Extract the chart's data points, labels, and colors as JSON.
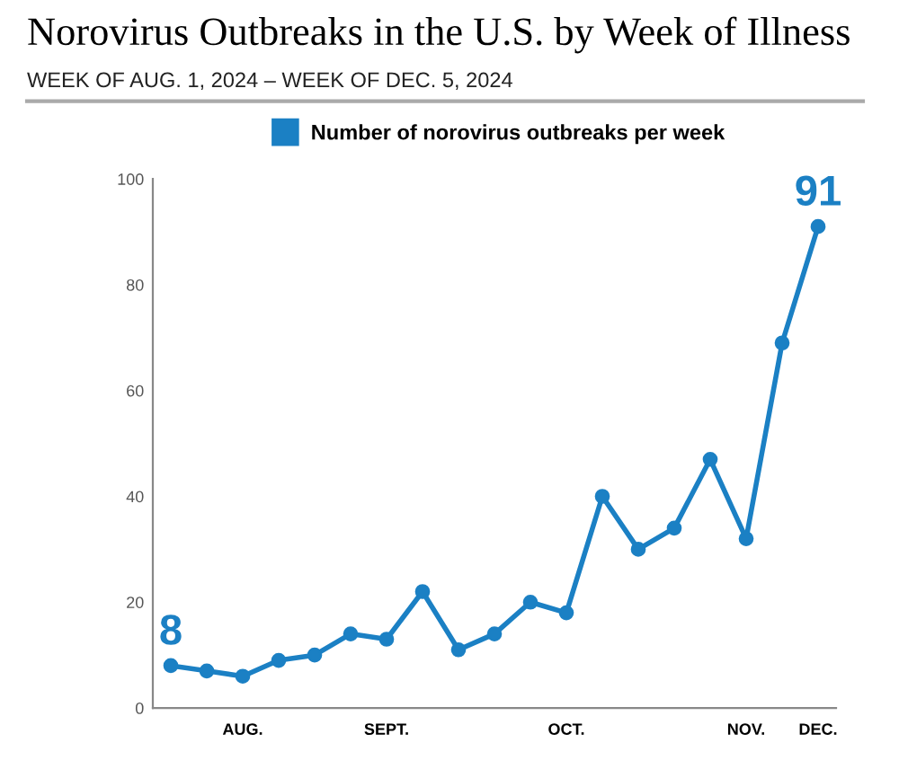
{
  "chart_data": {
    "type": "line",
    "title": "Norovirus Outbreaks in the U.S. by Week of Illness",
    "subtitle": "WEEK OF AUG. 1, 2024 – WEEK OF DEC. 5, 2024",
    "categories": [
      null,
      null,
      "AUG.",
      null,
      null,
      null,
      "SEPT.",
      null,
      null,
      null,
      null,
      "OCT.",
      null,
      null,
      null,
      null,
      "NOV.",
      null,
      "DEC."
    ],
    "series": [
      {
        "name": "Number of norovirus outbreaks per week",
        "color": "#1b80c4",
        "values": [
          8,
          7,
          6,
          9,
          10,
          14,
          13,
          22,
          11,
          14,
          20,
          18,
          40,
          30,
          34,
          47,
          32,
          69,
          91
        ],
        "value_labels": [
          "8",
          null,
          null,
          null,
          null,
          null,
          null,
          null,
          null,
          null,
          null,
          null,
          null,
          null,
          null,
          null,
          null,
          null,
          "91"
        ]
      }
    ],
    "ylim": [
      0,
      100
    ],
    "yticks": [
      0,
      20,
      40,
      60,
      80,
      100
    ],
    "grid": false,
    "legend": "top",
    "marker": "circle",
    "line_style": "solid"
  }
}
